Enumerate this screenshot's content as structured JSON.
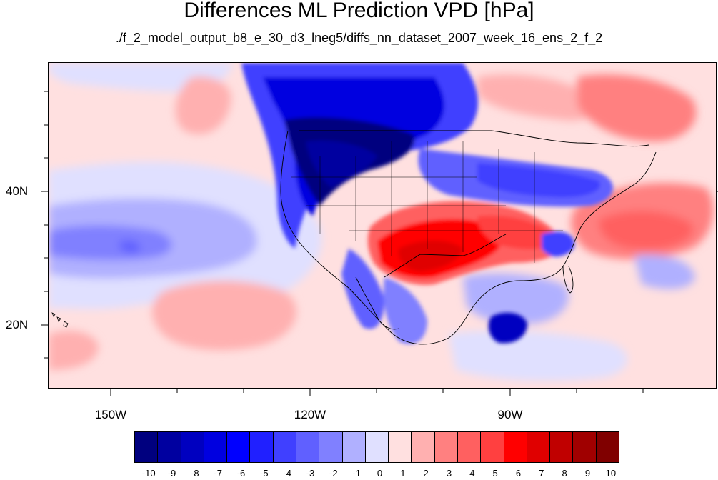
{
  "title": "Differences ML Prediction VPD [hPa]",
  "subtitle": "./f_2_model_output_b8_e_30_d3_lneg5/diffs_nn_dataset_2007_week_16_ens_2_f_2",
  "map": {
    "lat_labels": [
      "40N",
      "20N"
    ],
    "lon_labels": [
      "150W",
      "120W",
      "90W"
    ],
    "lon_range": [
      -160,
      -62
    ],
    "lat_range": [
      11,
      60
    ]
  },
  "colorbar": {
    "labels": [
      "-10",
      "-9",
      "-8",
      "-7",
      "-6",
      "-5",
      "-4",
      "-3",
      "-2",
      "-1",
      "0",
      "1",
      "2",
      "3",
      "4",
      "5",
      "6",
      "7",
      "8",
      "9",
      "10"
    ],
    "colors": [
      "#00007f",
      "#0000a0",
      "#0000c0",
      "#0000e0",
      "#0000ff",
      "#2020ff",
      "#4040ff",
      "#6060ff",
      "#8080ff",
      "#b0b0ff",
      "#e0e0ff",
      "#ffe0e0",
      "#ffb0b0",
      "#ff8080",
      "#ff6060",
      "#ff4040",
      "#ff0000",
      "#e00000",
      "#c00000",
      "#a00000",
      "#800000"
    ]
  }
}
